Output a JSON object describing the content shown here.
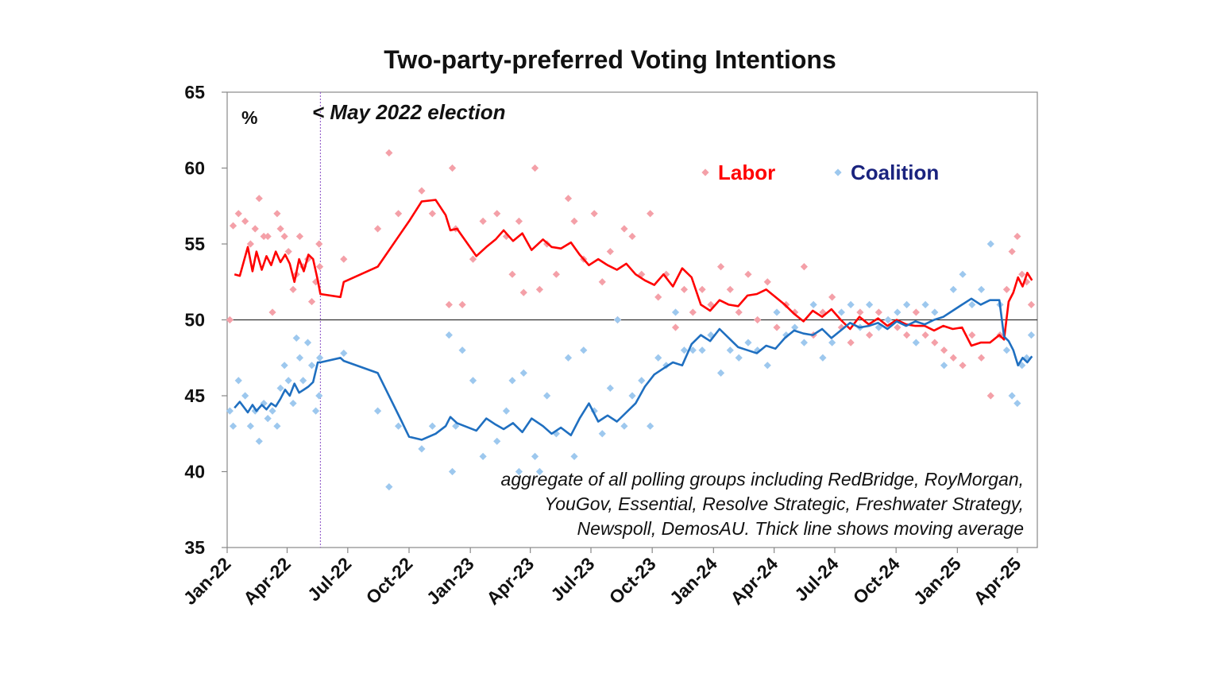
{
  "chart_data": {
    "type": "line",
    "title": "Two-party-preferred Voting Intentions",
    "unit_label": "%",
    "ylim": [
      35,
      65
    ],
    "yticks": [
      35,
      40,
      45,
      50,
      55,
      60,
      65
    ],
    "xlim": [
      "2022-01-01",
      "2025-05-01"
    ],
    "x_tick_labels": [
      "Jan-22",
      "Apr-22",
      "Jul-22",
      "Oct-22",
      "Jan-23",
      "Apr-23",
      "Jul-23",
      "Oct-23",
      "Jan-24",
      "Apr-24",
      "Jul-24",
      "Oct-24",
      "Jan-25",
      "Apr-25"
    ],
    "x_tick_dates": [
      "2022-01-01",
      "2022-04-01",
      "2022-07-01",
      "2022-10-01",
      "2023-01-01",
      "2023-04-01",
      "2023-07-01",
      "2023-10-01",
      "2024-01-01",
      "2024-04-01",
      "2024-07-01",
      "2024-10-01",
      "2025-01-01",
      "2025-04-01"
    ],
    "reference_line_y": 50,
    "event": {
      "date": "2022-05-21",
      "label": "< May 2022 election"
    },
    "annotation": [
      "aggregate of all polling groups including RedBridge, RoyMorgan,",
      "YouGov, Essential, Resolve Strategic, Freshwater Strategy,",
      "Newspoll, DemosAU. Thick line shows moving average"
    ],
    "legend": {
      "position": "top-right"
    },
    "colors": {
      "labor_line": "#ff0000",
      "labor_points": "#f4a0a8",
      "coalition_line": "#1f6fc0",
      "coalition_points": "#9dc8ee",
      "coalition_legend_text": "#1a237e",
      "event_line": "#9966cc"
    },
    "series": [
      {
        "name": "Labor",
        "kind": "moving_average",
        "x": [
          "2022-01-12",
          "2022-01-20",
          "2022-02-01",
          "2022-02-08",
          "2022-02-14",
          "2022-02-22",
          "2022-03-01",
          "2022-03-08",
          "2022-03-15",
          "2022-03-22",
          "2022-03-29",
          "2022-04-05",
          "2022-04-12",
          "2022-04-19",
          "2022-04-26",
          "2022-05-03",
          "2022-05-10",
          "2022-05-17",
          "2022-05-21",
          "2022-06-20",
          "2022-06-25",
          "2022-08-15",
          "2022-09-20",
          "2022-10-01",
          "2022-10-20",
          "2022-11-10",
          "2022-11-25",
          "2022-12-02",
          "2022-12-12",
          "2023-01-10",
          "2023-01-25",
          "2023-02-08",
          "2023-02-20",
          "2023-03-06",
          "2023-03-20",
          "2023-04-03",
          "2023-04-20",
          "2023-05-03",
          "2023-05-17",
          "2023-06-01",
          "2023-06-14",
          "2023-06-28",
          "2023-07-12",
          "2023-07-26",
          "2023-08-09",
          "2023-08-23",
          "2023-09-06",
          "2023-09-20",
          "2023-10-04",
          "2023-10-18",
          "2023-11-01",
          "2023-11-15",
          "2023-11-29",
          "2023-12-13",
          "2023-12-27",
          "2024-01-10",
          "2024-01-24",
          "2024-02-07",
          "2024-02-21",
          "2024-03-06",
          "2024-03-20",
          "2024-04-03",
          "2024-04-17",
          "2024-05-01",
          "2024-05-15",
          "2024-05-29",
          "2024-06-12",
          "2024-06-26",
          "2024-07-10",
          "2024-07-24",
          "2024-08-07",
          "2024-08-21",
          "2024-09-04",
          "2024-09-18",
          "2024-10-02",
          "2024-10-16",
          "2024-10-30",
          "2024-11-13",
          "2024-11-27",
          "2024-12-11",
          "2024-12-25",
          "2025-01-08",
          "2025-01-22",
          "2025-02-05",
          "2025-02-19",
          "2025-03-05",
          "2025-03-12",
          "2025-03-19",
          "2025-03-26",
          "2025-04-02",
          "2025-04-09",
          "2025-04-16",
          "2025-04-23"
        ],
        "y": [
          53.0,
          52.9,
          54.8,
          53.2,
          54.5,
          53.3,
          54.2,
          53.6,
          54.5,
          53.8,
          54.3,
          53.7,
          52.5,
          54.0,
          53.2,
          54.3,
          54.0,
          52.6,
          51.7,
          51.5,
          52.5,
          53.5,
          55.8,
          56.5,
          57.8,
          57.9,
          56.9,
          55.9,
          56.0,
          54.2,
          54.8,
          55.3,
          55.9,
          55.2,
          55.7,
          54.6,
          55.3,
          54.8,
          54.7,
          55.1,
          54.3,
          53.6,
          54.0,
          53.6,
          53.3,
          53.7,
          53.0,
          52.6,
          52.3,
          53.0,
          52.2,
          53.4,
          52.8,
          51.0,
          50.6,
          51.3,
          51.0,
          50.9,
          51.6,
          51.7,
          52.0,
          51.5,
          51.0,
          50.4,
          49.9,
          50.6,
          50.2,
          50.7,
          50.0,
          49.4,
          50.2,
          49.7,
          50.1,
          49.6,
          50.0,
          49.7,
          49.6,
          49.6,
          49.3,
          49.6,
          49.4,
          49.5,
          48.3,
          48.5,
          48.5,
          49.0,
          48.7,
          51.2,
          51.8,
          52.8,
          52.2,
          53.1,
          52.6
        ]
      },
      {
        "name": "Coalition",
        "kind": "moving_average",
        "x": [
          "2022-01-12",
          "2022-01-20",
          "2022-02-01",
          "2022-02-08",
          "2022-02-14",
          "2022-02-22",
          "2022-03-01",
          "2022-03-08",
          "2022-03-15",
          "2022-03-22",
          "2022-03-29",
          "2022-04-05",
          "2022-04-12",
          "2022-04-19",
          "2022-04-26",
          "2022-05-03",
          "2022-05-10",
          "2022-05-17",
          "2022-05-21",
          "2022-06-20",
          "2022-06-25",
          "2022-08-15",
          "2022-09-20",
          "2022-10-01",
          "2022-10-20",
          "2022-11-10",
          "2022-11-25",
          "2022-12-02",
          "2022-12-12",
          "2023-01-10",
          "2023-01-25",
          "2023-02-08",
          "2023-02-20",
          "2023-03-06",
          "2023-03-20",
          "2023-04-03",
          "2023-04-20",
          "2023-05-03",
          "2023-05-17",
          "2023-06-01",
          "2023-06-14",
          "2023-06-28",
          "2023-07-12",
          "2023-07-26",
          "2023-08-09",
          "2023-08-23",
          "2023-09-06",
          "2023-09-20",
          "2023-10-04",
          "2023-10-18",
          "2023-11-01",
          "2023-11-15",
          "2023-11-29",
          "2023-12-13",
          "2023-12-27",
          "2024-01-10",
          "2024-01-24",
          "2024-02-07",
          "2024-02-21",
          "2024-03-06",
          "2024-03-20",
          "2024-04-03",
          "2024-04-17",
          "2024-05-01",
          "2024-05-15",
          "2024-05-29",
          "2024-06-12",
          "2024-06-26",
          "2024-07-10",
          "2024-07-24",
          "2024-08-07",
          "2024-08-21",
          "2024-09-04",
          "2024-09-18",
          "2024-10-02",
          "2024-10-16",
          "2024-10-30",
          "2024-11-13",
          "2024-11-27",
          "2024-12-11",
          "2024-12-25",
          "2025-01-08",
          "2025-01-22",
          "2025-02-05",
          "2025-02-19",
          "2025-03-05",
          "2025-03-12",
          "2025-03-19",
          "2025-03-26",
          "2025-04-02",
          "2025-04-09",
          "2025-04-16",
          "2025-04-23"
        ],
        "y": [
          44.2,
          44.6,
          43.9,
          44.4,
          44.0,
          44.4,
          44.1,
          44.5,
          44.3,
          44.8,
          45.4,
          45.0,
          45.8,
          45.2,
          45.4,
          45.6,
          45.9,
          47.2,
          47.2,
          47.5,
          47.3,
          46.5,
          43.3,
          42.3,
          42.1,
          42.5,
          43.0,
          43.6,
          43.2,
          42.7,
          43.5,
          43.1,
          42.8,
          43.2,
          42.6,
          43.5,
          43.0,
          42.5,
          42.9,
          42.4,
          43.5,
          44.5,
          43.3,
          43.7,
          43.3,
          43.9,
          44.5,
          45.6,
          46.4,
          46.8,
          47.2,
          47.0,
          48.4,
          49.0,
          48.6,
          49.4,
          48.8,
          48.2,
          48.0,
          47.8,
          48.3,
          48.1,
          48.8,
          49.3,
          49.1,
          49.0,
          49.4,
          48.8,
          49.3,
          49.8,
          49.5,
          49.6,
          49.8,
          49.4,
          49.9,
          49.6,
          49.9,
          49.7,
          50.0,
          50.2,
          50.6,
          51.0,
          51.4,
          51.0,
          51.3,
          51.3,
          48.9,
          48.6,
          48.0,
          47.0,
          47.5,
          47.2,
          47.6
        ]
      },
      {
        "name": "Labor",
        "kind": "polls",
        "x": [
          "2022-01-05",
          "2022-01-10",
          "2022-01-18",
          "2022-01-28",
          "2022-02-05",
          "2022-02-12",
          "2022-02-18",
          "2022-02-25",
          "2022-03-03",
          "2022-03-10",
          "2022-03-17",
          "2022-03-22",
          "2022-03-28",
          "2022-04-03",
          "2022-04-10",
          "2022-04-15",
          "2022-04-20",
          "2022-04-25",
          "2022-05-02",
          "2022-05-08",
          "2022-05-14",
          "2022-05-19",
          "2022-05-20",
          "2022-06-25",
          "2022-08-15",
          "2022-09-01",
          "2022-09-15",
          "2022-10-20",
          "2022-11-05",
          "2022-11-30",
          "2022-12-05",
          "2022-12-10",
          "2022-12-20",
          "2023-01-05",
          "2023-01-20",
          "2023-02-10",
          "2023-02-24",
          "2023-03-05",
          "2023-03-15",
          "2023-03-22",
          "2023-04-08",
          "2023-04-15",
          "2023-04-26",
          "2023-05-10",
          "2023-05-28",
          "2023-06-06",
          "2023-06-20",
          "2023-07-06",
          "2023-07-18",
          "2023-07-30",
          "2023-08-10",
          "2023-08-20",
          "2023-09-01",
          "2023-09-15",
          "2023-09-28",
          "2023-10-10",
          "2023-10-22",
          "2023-11-05",
          "2023-11-18",
          "2023-12-01",
          "2023-12-15",
          "2023-12-28",
          "2024-01-12",
          "2024-01-26",
          "2024-02-08",
          "2024-02-22",
          "2024-03-07",
          "2024-03-22",
          "2024-04-05",
          "2024-04-19",
          "2024-05-02",
          "2024-05-16",
          "2024-05-30",
          "2024-06-13",
          "2024-06-27",
          "2024-07-11",
          "2024-07-25",
          "2024-08-08",
          "2024-08-22",
          "2024-09-05",
          "2024-09-19",
          "2024-10-03",
          "2024-10-17",
          "2024-10-31",
          "2024-11-14",
          "2024-11-28",
          "2024-12-12",
          "2024-12-26",
          "2025-01-09",
          "2025-01-23",
          "2025-02-06",
          "2025-02-20",
          "2025-03-06",
          "2025-03-16",
          "2025-03-24",
          "2025-04-01",
          "2025-04-08",
          "2025-04-15",
          "2025-04-22"
        ],
        "y": [
          50.0,
          56.2,
          57.0,
          56.5,
          55.0,
          56.0,
          58.0,
          55.5,
          55.5,
          50.5,
          57.0,
          56.0,
          55.5,
          54.5,
          52.0,
          53.0,
          55.5,
          53.5,
          54.0,
          51.2,
          52.5,
          55.0,
          53.5,
          54.0,
          56.0,
          61.0,
          57.0,
          58.5,
          57.0,
          51.0,
          60.0,
          56.0,
          51.0,
          54.0,
          56.5,
          57.0,
          55.5,
          53.0,
          56.5,
          51.8,
          60.0,
          52.0,
          55.0,
          53.0,
          58.0,
          56.5,
          54.0,
          57.0,
          52.5,
          54.5,
          50.0,
          56.0,
          55.5,
          53.0,
          57.0,
          51.5,
          53.0,
          49.5,
          52.0,
          50.5,
          52.0,
          51.0,
          53.5,
          52.0,
          50.5,
          53.0,
          50.0,
          52.5,
          49.5,
          51.0,
          50.5,
          53.5,
          49.0,
          50.5,
          51.5,
          49.5,
          48.5,
          50.5,
          49.0,
          50.5,
          50.0,
          49.5,
          49.0,
          50.5,
          49.0,
          48.5,
          48.0,
          47.5,
          47.0,
          49.0,
          47.5,
          45.0,
          49.0,
          52.0,
          54.5,
          55.5,
          53.0,
          52.5,
          51.0
        ]
      },
      {
        "name": "Coalition",
        "kind": "polls",
        "x": [
          "2022-01-05",
          "2022-01-10",
          "2022-01-18",
          "2022-01-28",
          "2022-02-05",
          "2022-02-12",
          "2022-02-18",
          "2022-02-25",
          "2022-03-03",
          "2022-03-10",
          "2022-03-17",
          "2022-03-22",
          "2022-03-28",
          "2022-04-03",
          "2022-04-10",
          "2022-04-15",
          "2022-04-20",
          "2022-04-25",
          "2022-05-02",
          "2022-05-08",
          "2022-05-14",
          "2022-05-19",
          "2022-05-20",
          "2022-06-25",
          "2022-08-15",
          "2022-09-01",
          "2022-09-15",
          "2022-10-20",
          "2022-11-05",
          "2022-11-30",
          "2022-12-05",
          "2022-12-10",
          "2022-12-20",
          "2023-01-05",
          "2023-01-20",
          "2023-02-10",
          "2023-02-24",
          "2023-03-05",
          "2023-03-15",
          "2023-03-22",
          "2023-04-08",
          "2023-04-15",
          "2023-04-26",
          "2023-05-10",
          "2023-05-28",
          "2023-06-06",
          "2023-06-20",
          "2023-07-06",
          "2023-07-18",
          "2023-07-30",
          "2023-08-10",
          "2023-08-20",
          "2023-09-01",
          "2023-09-15",
          "2023-09-28",
          "2023-10-10",
          "2023-10-22",
          "2023-11-05",
          "2023-11-18",
          "2023-12-01",
          "2023-12-15",
          "2023-12-28",
          "2024-01-12",
          "2024-01-26",
          "2024-02-08",
          "2024-02-22",
          "2024-03-07",
          "2024-03-22",
          "2024-04-05",
          "2024-04-19",
          "2024-05-02",
          "2024-05-16",
          "2024-05-30",
          "2024-06-13",
          "2024-06-27",
          "2024-07-11",
          "2024-07-25",
          "2024-08-08",
          "2024-08-22",
          "2024-09-05",
          "2024-09-19",
          "2024-10-03",
          "2024-10-17",
          "2024-10-31",
          "2024-11-14",
          "2024-11-28",
          "2024-12-12",
          "2024-12-26",
          "2025-01-09",
          "2025-01-23",
          "2025-02-06",
          "2025-02-20",
          "2025-03-06",
          "2025-03-16",
          "2025-03-24",
          "2025-04-01",
          "2025-04-08",
          "2025-04-15",
          "2025-04-22"
        ],
        "y": [
          44.0,
          43.0,
          46.0,
          45.0,
          43.0,
          44.0,
          42.0,
          44.5,
          43.5,
          44.0,
          43.0,
          45.5,
          47.0,
          46.0,
          44.5,
          48.8,
          47.5,
          46.0,
          48.5,
          47.0,
          44.0,
          45.0,
          47.5,
          47.8,
          44.0,
          39.0,
          43.0,
          41.5,
          43.0,
          49.0,
          40.0,
          43.0,
          48.0,
          46.0,
          41.0,
          42.0,
          44.0,
          46.0,
          40.0,
          46.5,
          41.0,
          40.0,
          45.0,
          42.5,
          47.5,
          41.0,
          48.0,
          44.0,
          42.5,
          45.5,
          50.0,
          43.0,
          45.0,
          46.0,
          43.0,
          47.5,
          47.0,
          50.5,
          48.0,
          48.0,
          48.0,
          49.0,
          46.5,
          48.0,
          47.5,
          48.5,
          48.0,
          47.0,
          50.5,
          49.0,
          49.5,
          48.5,
          51.0,
          47.5,
          48.5,
          50.5,
          51.0,
          49.5,
          51.0,
          49.5,
          50.0,
          50.5,
          51.0,
          48.5,
          51.0,
          50.5,
          47.0,
          52.0,
          53.0,
          51.0,
          52.0,
          55.0,
          51.0,
          48.0,
          45.0,
          44.5,
          47.0,
          47.5,
          49.0
        ]
      }
    ]
  }
}
